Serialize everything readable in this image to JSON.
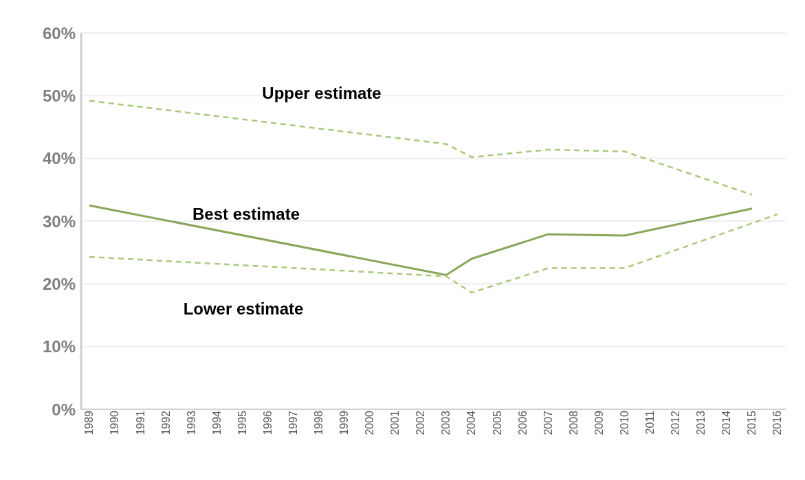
{
  "chart_data": {
    "type": "line",
    "categories": [
      "1989",
      "1990",
      "1991",
      "1992",
      "1993",
      "1994",
      "1995",
      "1996",
      "1997",
      "1998",
      "1999",
      "2000",
      "2001",
      "2002",
      "2003",
      "2004",
      "2005",
      "2006",
      "2007",
      "2008",
      "2009",
      "2010",
      "2011",
      "2012",
      "2013",
      "2014",
      "2015",
      "2016"
    ],
    "series": [
      {
        "name": "Upper estimate",
        "color": "#a9c97a",
        "line_style": "dashed",
        "values": [
          49.2,
          null,
          null,
          null,
          null,
          null,
          null,
          null,
          null,
          null,
          null,
          null,
          null,
          null,
          42.3,
          40.2,
          null,
          null,
          41.4,
          null,
          null,
          41.1,
          null,
          null,
          null,
          null,
          34.2,
          null
        ]
      },
      {
        "name": "Best estimate",
        "color": "#8aa65a",
        "line_style": "solid",
        "values": [
          32.5,
          null,
          null,
          null,
          null,
          null,
          null,
          null,
          null,
          null,
          null,
          null,
          null,
          null,
          21.4,
          24.0,
          null,
          null,
          27.9,
          null,
          null,
          27.7,
          null,
          null,
          null,
          null,
          32.0,
          null
        ]
      },
      {
        "name": "Lower estimate",
        "color": "#a9c97a",
        "line_style": "dashed",
        "values": [
          24.3,
          null,
          null,
          null,
          null,
          null,
          null,
          null,
          null,
          null,
          null,
          null,
          null,
          null,
          21.2,
          18.6,
          null,
          null,
          22.5,
          null,
          null,
          22.5,
          null,
          null,
          null,
          null,
          null,
          31.1
        ]
      }
    ],
    "ylim": [
      0,
      60
    ],
    "yticks": [
      {
        "value": 0,
        "label": "0%"
      },
      {
        "value": 10,
        "label": "10%"
      },
      {
        "value": 20,
        "label": "20%"
      },
      {
        "value": 30,
        "label": "30%"
      },
      {
        "value": 40,
        "label": "40%"
      },
      {
        "value": 50,
        "label": "50%"
      },
      {
        "value": 60,
        "label": "60%"
      }
    ],
    "grid": "y",
    "legend": false,
    "marker": "none"
  }
}
